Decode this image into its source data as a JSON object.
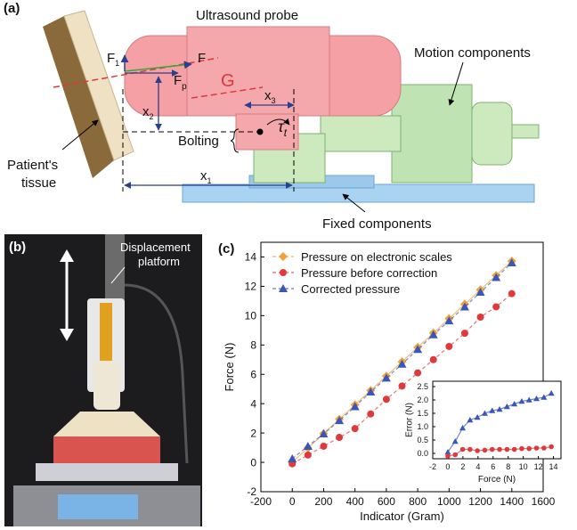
{
  "panel_a": {
    "label": "(a)",
    "probe": "Ultrasound probe",
    "motion": "Motion components",
    "tissue": [
      "Patient's",
      "tissue"
    ],
    "bolting": "Bolting",
    "fixed": "Fixed components",
    "f1": "F",
    "f1_sub": "1",
    "f2": "F",
    "fp": "F",
    "fp_sub": "p",
    "g": "G",
    "x3": "x",
    "x3_sub": "3",
    "x2": "x",
    "x2_sub": "2",
    "x1": "x",
    "x1_sub": "1",
    "tau": "τ",
    "tau_sub": "t"
  },
  "panel_b": {
    "label": "(b)",
    "platform": [
      "Displacement",
      "platform"
    ]
  },
  "chart_data": [
    {
      "type": "line",
      "panel_label": "(c)",
      "x_label": "Indicator (Gram)",
      "y_label": "Force (N)",
      "x": [
        0,
        100,
        200,
        300,
        400,
        500,
        600,
        700,
        800,
        900,
        1000,
        1100,
        1200,
        1300,
        1400
      ],
      "series": [
        {
          "name": "Pressure on electronic scales",
          "color": "#f0a23a",
          "marker": "diamond",
          "values": [
            0,
            0.98,
            1.96,
            2.94,
            3.92,
            4.9,
            5.88,
            6.86,
            7.84,
            8.82,
            9.8,
            10.78,
            11.76,
            12.74,
            13.72
          ]
        },
        {
          "name": "Pressure before correction",
          "color": "#e0393b",
          "marker": "circle",
          "values": [
            -0.1,
            0.5,
            1.1,
            1.7,
            2.3,
            3.3,
            4.3,
            5.2,
            6.1,
            7.0,
            7.9,
            8.8,
            9.9,
            10.6,
            11.5
          ]
        },
        {
          "name": "Corrected pressure",
          "color": "#3a56b8",
          "marker": "triangle",
          "values": [
            0.25,
            1.1,
            1.95,
            2.85,
            3.8,
            4.8,
            5.75,
            6.7,
            7.7,
            8.7,
            9.65,
            10.6,
            11.6,
            12.6,
            13.6
          ]
        }
      ],
      "xlim": [
        -200,
        1600
      ],
      "xticks": [
        -200,
        0,
        200,
        400,
        600,
        800,
        1000,
        1200,
        1400,
        1600
      ],
      "ylim": [
        -2,
        15
      ],
      "yticks": [
        -2,
        0,
        2,
        4,
        6,
        8,
        10,
        12,
        14
      ],
      "legend": "upper left"
    },
    {
      "type": "line",
      "x_label": "Force (N)",
      "y_label": "Error (N)",
      "x": [
        0,
        0.98,
        1.96,
        2.94,
        3.92,
        4.9,
        5.88,
        6.86,
        7.84,
        8.82,
        9.8,
        10.78,
        11.76,
        12.74,
        13.72
      ],
      "series": [
        {
          "color": "#3a56b8",
          "marker": "triangle",
          "values": [
            0.05,
            0.45,
            0.95,
            1.25,
            1.35,
            1.5,
            1.6,
            1.65,
            1.75,
            1.85,
            1.95,
            2.0,
            2.05,
            2.1,
            2.25
          ]
        },
        {
          "color": "#e0393b",
          "marker": "circle",
          "values": [
            -0.1,
            -0.05,
            0.15,
            0.15,
            0.1,
            0.12,
            0.15,
            0.15,
            0.15,
            0.15,
            0.18,
            0.18,
            0.2,
            0.2,
            0.25
          ]
        }
      ],
      "xlim": [
        -2,
        15
      ],
      "xticks": [
        -2,
        0,
        2,
        4,
        6,
        8,
        10,
        12,
        14
      ],
      "ylim": [
        -0.2,
        2.7
      ],
      "yticks": [
        {
          "value": 0,
          "label": "0.0"
        },
        0.5,
        {
          "value": 1,
          "label": "1.0"
        },
        1.5,
        {
          "value": 2,
          "label": "2.0"
        },
        2.5
      ]
    }
  ]
}
